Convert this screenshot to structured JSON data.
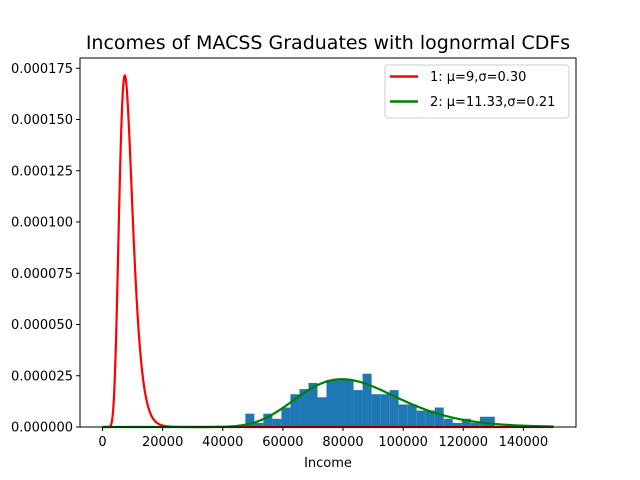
{
  "chart_data": {
    "type": "histogram+line",
    "title": "Incomes of MACSS Graduates with lognormal CDFs",
    "xlabel": "Income",
    "ylabel": "",
    "xlim": [
      -7500,
      157500
    ],
    "ylim": [
      0,
      0.00018
    ],
    "x_ticks": [
      0,
      20000,
      40000,
      60000,
      80000,
      100000,
      120000,
      140000
    ],
    "x_tick_labels": [
      "0",
      "20000",
      "40000",
      "60000",
      "80000",
      "100000",
      "120000",
      "140000"
    ],
    "y_ticks": [
      0,
      2.5e-05,
      5e-05,
      7.5e-05,
      0.0001,
      0.000125,
      0.00015,
      0.000175
    ],
    "y_tick_labels": [
      "0.000000",
      "0.000025",
      "0.000050",
      "0.000075",
      "0.000100",
      "0.000125",
      "0.000150",
      "0.000175"
    ],
    "histogram": {
      "color": "#1f77b4",
      "bins": [
        {
          "x0": 47500,
          "x1": 50500,
          "y": 6.5e-06
        },
        {
          "x0": 50500,
          "x1": 53500,
          "y": 2e-06
        },
        {
          "x0": 53500,
          "x1": 56500,
          "y": 6.5e-06
        },
        {
          "x0": 56500,
          "x1": 59500,
          "y": 4e-06
        },
        {
          "x0": 59500,
          "x1": 62500,
          "y": 9.5e-06
        },
        {
          "x0": 62500,
          "x1": 65500,
          "y": 1.6e-05
        },
        {
          "x0": 65500,
          "x1": 68500,
          "y": 1.85e-05
        },
        {
          "x0": 68500,
          "x1": 71500,
          "y": 2.15e-05
        },
        {
          "x0": 71500,
          "x1": 74500,
          "y": 1.45e-05
        },
        {
          "x0": 74500,
          "x1": 77500,
          "y": 2.3e-05
        },
        {
          "x0": 77500,
          "x1": 80500,
          "y": 2.3e-05
        },
        {
          "x0": 80500,
          "x1": 83500,
          "y": 2.3e-05
        },
        {
          "x0": 83500,
          "x1": 86500,
          "y": 1.8e-05
        },
        {
          "x0": 86500,
          "x1": 89500,
          "y": 2.6e-05
        },
        {
          "x0": 89500,
          "x1": 92500,
          "y": 1.6e-05
        },
        {
          "x0": 92500,
          "x1": 95500,
          "y": 1.6e-05
        },
        {
          "x0": 95500,
          "x1": 98500,
          "y": 1.8e-05
        },
        {
          "x0": 98500,
          "x1": 101500,
          "y": 1.1e-05
        },
        {
          "x0": 101500,
          "x1": 104500,
          "y": 1.1e-05
        },
        {
          "x0": 104500,
          "x1": 107500,
          "y": 8e-06
        },
        {
          "x0": 107500,
          "x1": 110500,
          "y": 8e-06
        },
        {
          "x0": 110500,
          "x1": 113500,
          "y": 9.5e-06
        },
        {
          "x0": 113500,
          "x1": 116500,
          "y": 4e-06
        },
        {
          "x0": 116500,
          "x1": 119500,
          "y": 2e-06
        },
        {
          "x0": 119500,
          "x1": 122500,
          "y": 4e-06
        },
        {
          "x0": 122500,
          "x1": 125500,
          "y": 2e-06
        },
        {
          "x0": 125500,
          "x1": 130500,
          "y": 5e-06
        }
      ]
    },
    "series": [
      {
        "name": "1: μ=9,σ=0.30",
        "color": "#ff0000",
        "dist": "lognormal",
        "mu": 9,
        "sigma": 0.3
      },
      {
        "name": "2: μ=11.33,σ=0.21",
        "color": "#008000",
        "dist": "lognormal",
        "mu": 11.33,
        "sigma": 0.21
      }
    ],
    "x_range": [
      1,
      150000
    ],
    "legend_position": "top-right",
    "grid": false
  }
}
